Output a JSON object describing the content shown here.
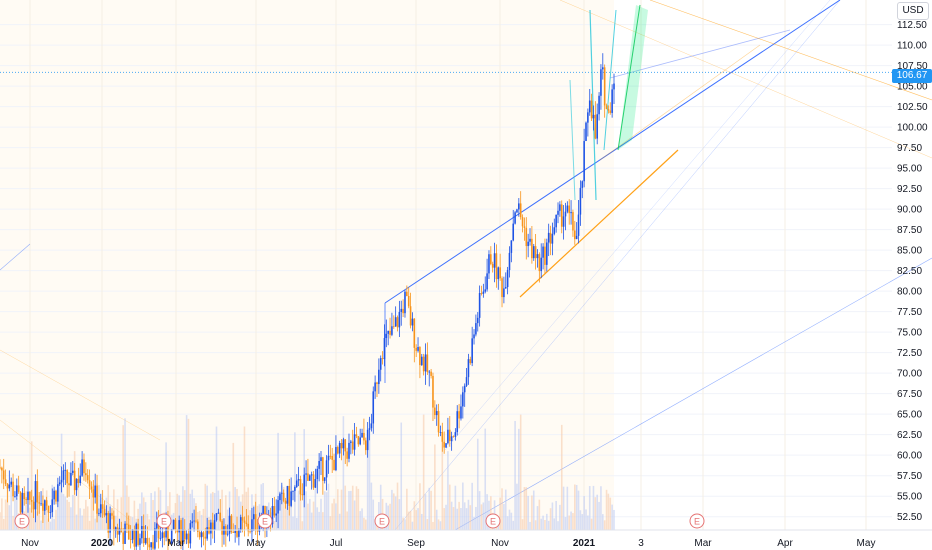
{
  "chart_data": {
    "type": "candlestick",
    "currency": "USD",
    "last_price": "106.67",
    "ylim": [
      51.0,
      115.5
    ],
    "y_ticks": [
      "112.50",
      "110.00",
      "107.50",
      "105.00",
      "102.50",
      "100.00",
      "97.50",
      "95.00",
      "92.50",
      "90.00",
      "87.50",
      "85.00",
      "82.50",
      "80.00",
      "77.50",
      "75.00",
      "72.50",
      "70.00",
      "67.50",
      "65.00",
      "62.50",
      "60.00",
      "57.50",
      "55.00",
      "52.50"
    ],
    "x_ticks": [
      {
        "label": "Nov",
        "bold": false
      },
      {
        "label": "2020",
        "bold": true
      },
      {
        "label": "Mar",
        "bold": false
      },
      {
        "label": "May",
        "bold": false
      },
      {
        "label": "Jul",
        "bold": false
      },
      {
        "label": "Sep",
        "bold": false
      },
      {
        "label": "Nov",
        "bold": false
      },
      {
        "label": "2021",
        "bold": true
      },
      {
        "label": "3",
        "bold": false
      },
      {
        "label": "Mar",
        "bold": false
      },
      {
        "label": "Apr",
        "bold": false
      },
      {
        "label": "May",
        "bold": false
      }
    ],
    "earnings_label": "E",
    "earnings_markers": 6,
    "price_path": [
      {
        "t": 0.0,
        "p": 58.5
      },
      {
        "t": 0.02,
        "p": 56.0
      },
      {
        "t": 0.04,
        "p": 53.5
      },
      {
        "t": 0.06,
        "p": 55.5
      },
      {
        "t": 0.08,
        "p": 54.0
      },
      {
        "t": 0.1,
        "p": 57.0
      },
      {
        "t": 0.12,
        "p": 56.5
      },
      {
        "t": 0.14,
        "p": 59.0
      },
      {
        "t": 0.16,
        "p": 53.5
      },
      {
        "t": 0.18,
        "p": 51.5
      },
      {
        "t": 0.2,
        "p": 50.5
      },
      {
        "t": 0.24,
        "p": 50.0
      },
      {
        "t": 0.28,
        "p": 50.5
      },
      {
        "t": 0.32,
        "p": 51.0
      },
      {
        "t": 0.36,
        "p": 51.5
      },
      {
        "t": 0.4,
        "p": 51.0
      },
      {
        "t": 0.44,
        "p": 53.0
      },
      {
        "t": 0.48,
        "p": 55.5
      },
      {
        "t": 0.52,
        "p": 58.0
      },
      {
        "t": 0.56,
        "p": 60.5
      },
      {
        "t": 0.6,
        "p": 62.0
      },
      {
        "t": 0.62,
        "p": 73.0
      },
      {
        "t": 0.64,
        "p": 75.0
      },
      {
        "t": 0.66,
        "p": 79.0
      },
      {
        "t": 0.68,
        "p": 73.0
      },
      {
        "t": 0.7,
        "p": 69.5
      },
      {
        "t": 0.72,
        "p": 61.0
      },
      {
        "t": 0.74,
        "p": 63.0
      },
      {
        "t": 0.76,
        "p": 70.0
      },
      {
        "t": 0.78,
        "p": 78.0
      },
      {
        "t": 0.8,
        "p": 84.5
      },
      {
        "t": 0.82,
        "p": 80.0
      },
      {
        "t": 0.84,
        "p": 91.0
      },
      {
        "t": 0.86,
        "p": 86.0
      },
      {
        "t": 0.88,
        "p": 83.0
      },
      {
        "t": 0.9,
        "p": 87.5
      },
      {
        "t": 0.92,
        "p": 90.0
      },
      {
        "t": 0.94,
        "p": 86.5
      },
      {
        "t": 0.96,
        "p": 104.5
      },
      {
        "t": 0.97,
        "p": 98.5
      },
      {
        "t": 0.98,
        "p": 107.0
      },
      {
        "t": 0.99,
        "p": 101.0
      },
      {
        "t": 1.0,
        "p": 106.67
      }
    ]
  }
}
